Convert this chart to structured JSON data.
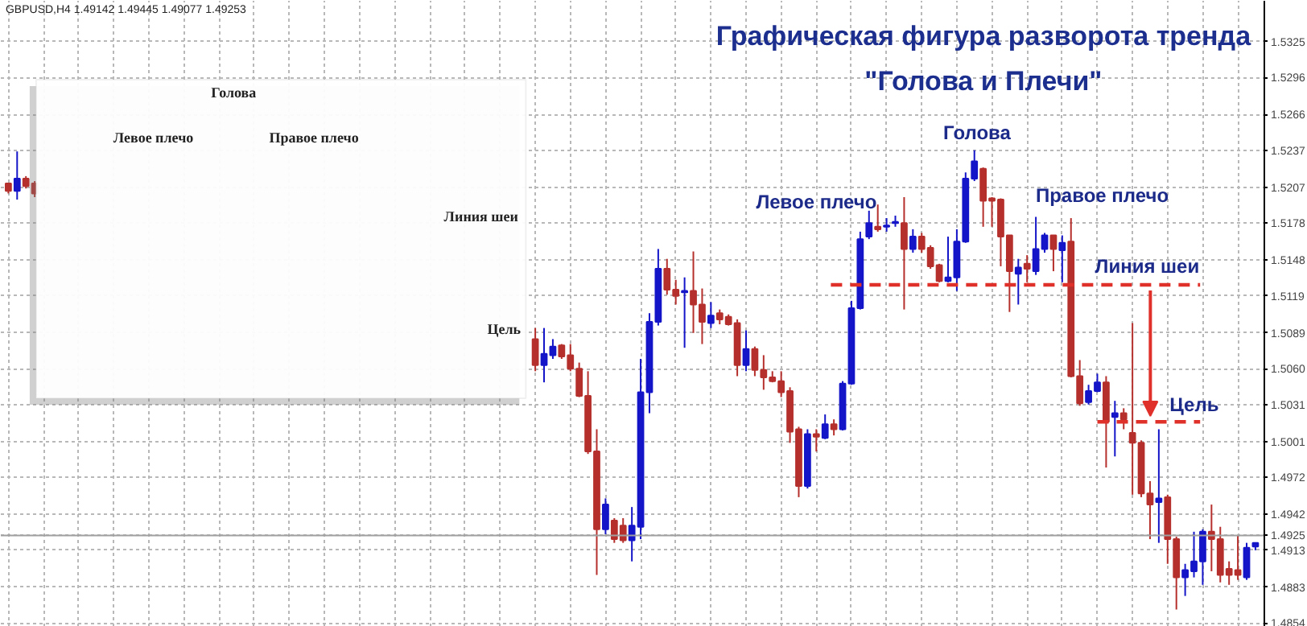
{
  "chart_data": [
    {
      "type": "candlestick",
      "title": "Графическая фигура разворота тренда",
      "subtitle": "\"Голова и Плечи\"",
      "annotations": [
        "GBPUSD,H4  1.49142 1.49445 1.49077 1.49253",
        "Левое плечо",
        "Голова",
        "Правое плечо"
      ],
      "categories": [
        null,
        null,
        null,
        null,
        null,
        null,
        null,
        null,
        null,
        null,
        null,
        null,
        null,
        null,
        null,
        null,
        null,
        null,
        null,
        null,
        null,
        null,
        null,
        null,
        null,
        null,
        null,
        null,
        null,
        null,
        null,
        null,
        null,
        null,
        null,
        null,
        null,
        null,
        null,
        null,
        null,
        null,
        null,
        null,
        null,
        null,
        null,
        null,
        null,
        null,
        null,
        null,
        null,
        null,
        null,
        null,
        null,
        null,
        null,
        null,
        null,
        null,
        null,
        null,
        null,
        null,
        null,
        null,
        null,
        null,
        null,
        null,
        null,
        null,
        null,
        null,
        null,
        null,
        null,
        null,
        null,
        null,
        null,
        null,
        null,
        null,
        null,
        null,
        null,
        null,
        null,
        null,
        null,
        null,
        null,
        null,
        null,
        null,
        null,
        null,
        null,
        null,
        null,
        null,
        null,
        null,
        null,
        null,
        null,
        null,
        null,
        null,
        null,
        null,
        null,
        null,
        null,
        null,
        null,
        null,
        null,
        null,
        null,
        null,
        null,
        null,
        null,
        null,
        null,
        null,
        null,
        null,
        null,
        null,
        null,
        null,
        null,
        null,
        null,
        null,
        null,
        null,
        null
      ],
      "ohlc": [
        [
          1.521,
          1.521,
          1.5202,
          1.5204
        ],
        [
          1.5204,
          1.5236,
          1.5197,
          1.5214
        ],
        [
          1.5214,
          1.5216,
          1.5206,
          1.5208
        ],
        [
          1.521,
          1.5212,
          1.5199,
          1.5202
        ],
        null,
        null,
        null,
        null,
        null,
        null,
        null,
        null,
        null,
        null,
        null,
        null,
        null,
        null,
        null,
        null,
        null,
        null,
        null,
        null,
        null,
        null,
        null,
        null,
        null,
        null,
        null,
        null,
        null,
        null,
        null,
        null,
        null,
        null,
        null,
        null,
        null,
        null,
        null,
        null,
        null,
        null,
        null,
        null,
        null,
        null,
        null,
        null,
        null,
        null,
        null,
        null,
        null,
        null,
        null,
        null,
        [
          1.5084,
          1.5093,
          1.5058,
          1.5063
        ],
        [
          1.5063,
          1.5093,
          1.5049,
          1.5072
        ],
        [
          1.5071,
          1.5084,
          1.5068,
          1.5078
        ],
        [
          1.5079,
          1.508,
          1.5068,
          1.507
        ],
        [
          1.5071,
          1.508,
          1.5058,
          1.506
        ],
        [
          1.506,
          1.5065,
          1.5037,
          1.5038
        ],
        [
          1.5038,
          1.5058,
          1.4991,
          1.4993
        ],
        [
          1.4993,
          1.5011,
          1.4893,
          1.493
        ],
        [
          1.493,
          1.4955,
          1.4926,
          1.495
        ],
        [
          1.4937,
          1.4939,
          1.4919,
          1.4922
        ],
        [
          1.4933,
          1.4939,
          1.4919,
          1.4921
        ],
        [
          1.4921,
          1.4948,
          1.4904,
          1.4933
        ],
        [
          1.4932,
          1.5068,
          1.4922,
          1.5041
        ],
        [
          1.5041,
          1.5105,
          1.5024,
          1.5098
        ],
        [
          1.5098,
          1.5157,
          1.5095,
          1.5141
        ],
        [
          1.5141,
          1.5149,
          1.512,
          1.5124
        ],
        [
          1.5124,
          1.5132,
          1.5112,
          1.5119
        ],
        [
          1.5122,
          1.5134,
          1.5077,
          1.5123
        ],
        [
          1.5123,
          1.5155,
          1.5089,
          1.5112
        ],
        [
          1.5112,
          1.5125,
          1.508,
          1.5098
        ],
        [
          1.5097,
          1.5114,
          1.5093,
          1.5103
        ],
        [
          1.5105,
          1.5108,
          1.5096,
          1.51
        ],
        [
          1.5102,
          1.5104,
          1.5095,
          1.5096
        ],
        [
          1.5097,
          1.51,
          1.5054,
          1.5063
        ],
        [
          1.5063,
          1.5091,
          1.5058,
          1.5076
        ],
        [
          1.5076,
          1.5078,
          1.5054,
          1.5059
        ],
        [
          1.5059,
          1.5071,
          1.5043,
          1.5053
        ],
        [
          1.5053,
          1.5058,
          1.5049,
          1.505
        ],
        [
          1.505,
          1.5058,
          1.5037,
          1.5041
        ],
        [
          1.5042,
          1.5045,
          1.5,
          1.5009
        ],
        [
          1.5011,
          1.5013,
          1.4956,
          1.4965
        ],
        [
          1.4965,
          1.5011,
          1.4963,
          1.5007
        ],
        [
          1.5007,
          1.5011,
          1.4993,
          1.5005
        ],
        [
          1.5004,
          1.5023,
          1.5003,
          1.5015
        ],
        [
          1.5015,
          1.5019,
          1.5006,
          1.5011
        ],
        [
          1.5011,
          1.505,
          1.501,
          1.5048
        ],
        [
          1.5048,
          1.5115,
          1.5047,
          1.5109
        ],
        [
          1.5109,
          1.5171,
          1.5108,
          1.5165
        ],
        [
          1.5167,
          1.5188,
          1.5165,
          1.5178
        ],
        [
          1.5175,
          1.5193,
          1.5171,
          1.5173
        ],
        [
          1.5175,
          1.5182,
          1.5171,
          1.5176
        ],
        [
          1.5178,
          1.5184,
          1.5175,
          1.5179
        ],
        [
          1.5178,
          1.5199,
          1.5108,
          1.5157
        ],
        [
          1.5157,
          1.5173,
          1.5154,
          1.5167
        ],
        [
          1.5167,
          1.517,
          1.5154,
          1.5157
        ],
        [
          1.5158,
          1.516,
          1.5141,
          1.5143
        ],
        [
          1.5144,
          1.5145,
          1.513,
          1.5131
        ],
        [
          1.5131,
          1.5167,
          1.513,
          1.5134
        ],
        [
          1.5134,
          1.5173,
          1.5123,
          1.5163
        ],
        [
          1.5163,
          1.5219,
          1.5162,
          1.5214
        ],
        [
          1.5214,
          1.5237,
          1.5212,
          1.5228
        ],
        [
          1.5222,
          1.5223,
          1.5175,
          1.5196
        ],
        [
          1.5198,
          1.5199,
          1.5175,
          1.5196
        ],
        [
          1.5197,
          1.5198,
          1.5143,
          1.5167
        ],
        [
          1.5168,
          1.5168,
          1.5106,
          1.5139
        ],
        [
          1.5137,
          1.5149,
          1.5112,
          1.5142
        ],
        [
          1.5145,
          1.5152,
          1.513,
          1.5141
        ],
        [
          1.5139,
          1.5183,
          1.5136,
          1.5157
        ],
        [
          1.5157,
          1.517,
          1.5154,
          1.5168
        ],
        [
          1.5168,
          1.5168,
          1.5139,
          1.5157
        ],
        [
          1.5156,
          1.5168,
          1.513,
          1.5162
        ],
        [
          1.5163,
          1.5182,
          1.5053,
          1.5054
        ],
        [
          1.5054,
          1.5067,
          1.503,
          1.5032
        ],
        [
          1.5033,
          1.5047,
          1.5031,
          1.5042
        ],
        [
          1.5042,
          1.5056,
          1.5041,
          1.5049
        ],
        [
          1.5049,
          1.5054,
          1.498,
          1.5017
        ],
        [
          1.5021,
          1.5034,
          1.4989,
          1.5024
        ],
        [
          1.5024,
          1.5028,
          1.5011,
          1.5019
        ],
        [
          1.5008,
          1.5097,
          1.4958,
          1.5
        ],
        [
          1.5,
          1.5002,
          1.4956,
          1.4959
        ],
        [
          1.4959,
          1.4969,
          1.4922,
          1.495
        ],
        [
          1.4952,
          1.5011,
          1.4919,
          1.4955
        ],
        [
          1.4956,
          1.4958,
          1.4902,
          1.4922
        ],
        [
          1.4922,
          1.4924,
          1.4865,
          1.4891
        ],
        [
          1.4891,
          1.4902,
          1.4876,
          1.4897
        ],
        [
          1.4896,
          1.4928,
          1.4891,
          1.4904
        ],
        [
          1.4904,
          1.493,
          1.4885,
          1.4928
        ],
        [
          1.4928,
          1.495,
          1.4896,
          1.4922
        ],
        [
          1.4922,
          1.4932,
          1.4887,
          1.4893
        ],
        [
          1.4898,
          1.4904,
          1.4885,
          1.4893
        ],
        [
          1.4897,
          1.4925,
          1.4889,
          1.4893
        ],
        [
          1.4891,
          1.4919,
          1.4889,
          1.4915
        ],
        [
          1.4916,
          1.4919,
          1.4913,
          1.4919
        ]
      ],
      "colors": [
        "#b5302c",
        "#1414c8",
        "#b5302c",
        "#b5302c",
        null,
        null,
        null,
        null,
        null,
        null,
        null,
        null,
        null,
        null,
        null,
        null,
        null,
        null,
        null,
        null,
        null,
        null,
        null,
        null,
        null,
        null,
        null,
        null,
        null,
        null,
        null,
        null,
        null,
        null,
        null,
        null,
        null,
        null,
        null,
        null,
        null,
        null,
        null,
        null,
        null,
        null,
        null,
        null,
        null,
        null,
        null,
        null,
        null,
        null,
        null,
        null,
        null,
        null,
        null,
        null,
        "#b5302c",
        "#1414c8",
        "#1414c8",
        "#b5302c",
        "#b5302c",
        "#b5302c",
        "#b5302c",
        "#b5302c",
        "#1414c8",
        "#b5302c",
        "#b5302c",
        "#1414c8",
        "#1414c8",
        "#1414c8",
        "#1414c8",
        "#b5302c",
        "#b5302c",
        "#1414c8",
        "#b5302c",
        "#b5302c",
        "#1414c8",
        "#b5302c",
        "#b5302c",
        "#b5302c",
        "#1414c8",
        "#b5302c",
        "#b5302c",
        "#b5302c",
        "#b5302c",
        "#b5302c",
        "#b5302c",
        "#1414c8",
        "#b5302c",
        "#1414c8",
        "#b5302c",
        "#1414c8",
        "#1414c8",
        "#1414c8",
        "#1414c8",
        "#b5302c",
        "#1414c8",
        "#1414c8",
        "#b5302c",
        "#1414c8",
        "#b5302c",
        "#b5302c",
        "#b5302c",
        "#1414c8",
        "#1414c8",
        "#1414c8",
        "#1414c8",
        "#b5302c",
        "#b5302c",
        "#b5302c",
        "#b5302c",
        "#1414c8",
        "#b5302c",
        "#1414c8",
        "#1414c8",
        "#b5302c",
        "#1414c8",
        "#b5302c",
        "#b5302c",
        "#1414c8",
        "#1414c8",
        "#b5302c",
        "#1414c8",
        "#b5302c",
        "#b5302c",
        "#b5302c",
        "#b5302c",
        "#1414c8",
        "#b5302c",
        "#b5302c",
        "#1414c8",
        "#1414c8",
        "#1414c8",
        "#b5302c",
        "#b5302c",
        "#b5302c",
        "#b5302c",
        "#1414c8",
        "#1414c8"
      ],
      "ylim": [
        1.4851,
        1.5358
      ],
      "yticks": [
        1.5325,
        1.5296,
        1.5266,
        1.5237,
        1.5207,
        1.5178,
        1.5148,
        1.5119,
        1.5089,
        {
          "value": 1.506,
          "label": "1.5060"
        },
        1.5031,
        1.5001,
        1.4972,
        1.4942,
        1.4925,
        1.4913,
        1.4883,
        1.4854
      ],
      "ref_lines": [
        {
          "axis": "y",
          "value": 1.5128,
          "label": "Линия шеи",
          "color": "#e0302a",
          "line_style": "dashed"
        },
        {
          "axis": "y",
          "value": 1.5017,
          "label": "Цель",
          "color": "#e0302a",
          "line_style": "dashed"
        },
        {
          "axis": "y",
          "value": 1.4925,
          "color": "#a0a0a0",
          "line_style": "solid"
        }
      ],
      "grid": true,
      "tick_labels": "y"
    },
    {
      "type": "other",
      "annotations": [
        "Голова",
        "Левое плечо",
        "Правое плечо",
        "Линия шеи",
        "Цель"
      ]
    }
  ]
}
